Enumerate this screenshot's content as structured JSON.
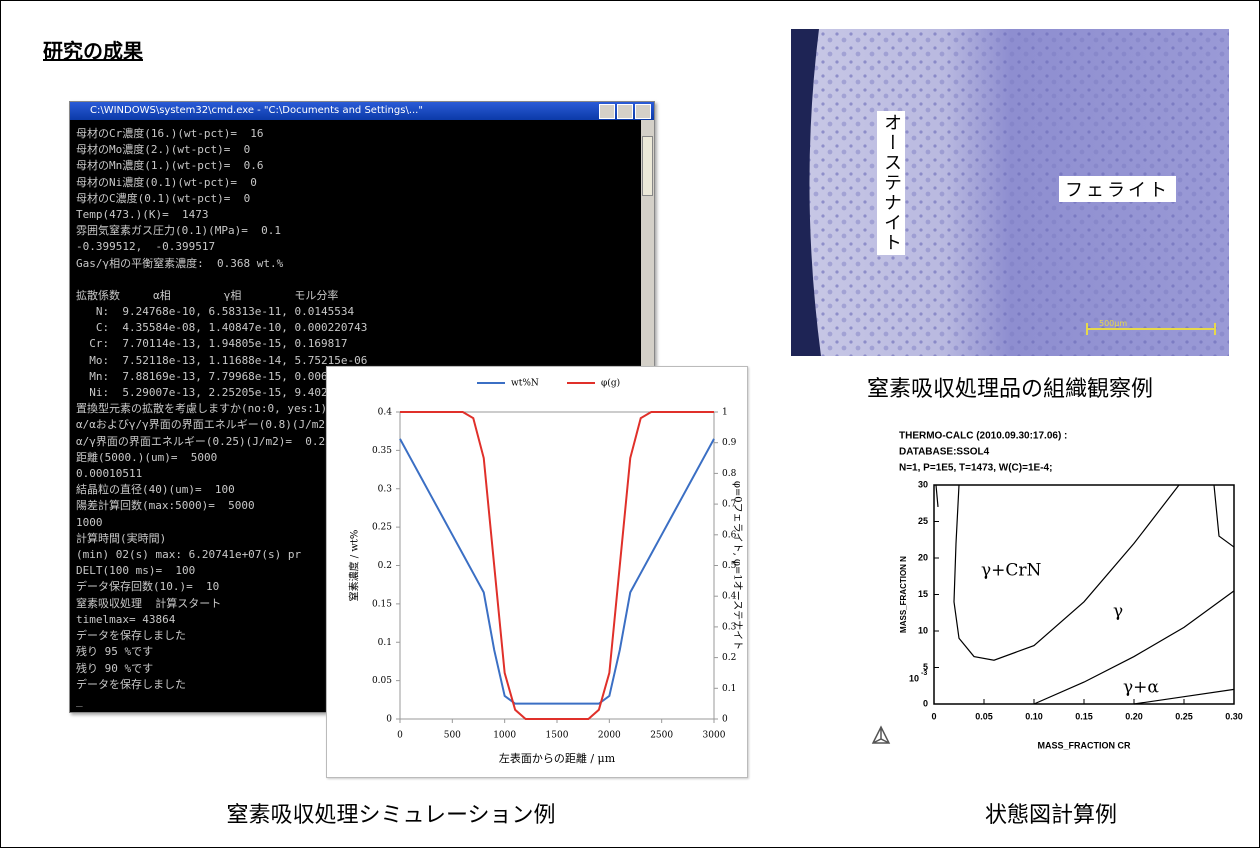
{
  "header": {
    "title": "研究の成果"
  },
  "console": {
    "title": "C:\\WINDOWS\\system32\\cmd.exe - \"C:\\Documents and Settings\\...\"",
    "lines": [
      "母材のCr濃度(16.)(wt-pct)=  16",
      "母材のMo濃度(2.)(wt-pct)=  0",
      "母材のMn濃度(1.)(wt-pct)=  0.6",
      "母材のNi濃度(0.1)(wt-pct)=  0",
      "母材のC濃度(0.1)(wt-pct)=  0",
      "Temp(473.)(K)=  1473",
      "雰囲気窒素ガス圧力(0.1)(MPa)=  0.1",
      "-0.399512,  -0.399517",
      "Gas/γ相の平衡窒素濃度:  0.368 wt.%",
      "拡散係数     α相        γ相        モル分率",
      "   N:  9.24768e-10, 6.58313e-11, 0.0145534",
      "   C:  4.35584e-08, 1.40847e-10, 0.000220743",
      "  Cr:  7.70114e-13, 1.94805e-15, 0.169817",
      "  Mo:  7.52118e-13, 1.11688e-14, 5.75215e-06",
      "  Mn:  7.88169e-13, 7.79968e-15, 0.0060271",
      "  Ni:  5.29007e-13, 2.25205e-15, 9.40209e-05",
      "置換型元素の拡散を考慮しますか(no:0, yes:1)=  0",
      "α/αおよびγ/γ界面の界面エネルギー(0.8)(J/m2)=  0.8",
      "α/γ界面の界面エネルギー(0.25)(J/m2)=  0.25",
      "距離(5000.)(um)=  5000",
      "0.00010511",
      "結晶粒の直径(40)(um)=  100",
      "陽差計算回数(max:5000)=  5000",
      "1000",
      "計算時間(実時間)",
      "(min) 02(s) max: 6.20741e+07(s) pr",
      "DELT(100 ms)=  100",
      "データ保存回数(10.)=  10",
      "窒素吸収処理  計算スタート",
      "timelmax= 43864",
      "データを保存しました",
      "残り 95 %です",
      "残り 90 %です",
      "データを保存しました",
      "_"
    ]
  },
  "micrograph": {
    "austenite": "オーステナイト",
    "ferrite": "フェライト",
    "scale_bar": "500μm",
    "caption": "窒素吸収処理品の組織観察例"
  },
  "captions": {
    "simulation": "窒素吸収処理シミュレーション例",
    "phase_diagram": "状態図計算例"
  },
  "chart_data": [
    {
      "type": "line",
      "x_label": "左表面からの距離 / μm",
      "y_label": "窒素濃度 / wt%",
      "y2_label": "φ=0フェライト, φ=1オーステナイト",
      "x": [
        0,
        100,
        200,
        300,
        400,
        500,
        600,
        700,
        800,
        900,
        1000,
        1100,
        1200,
        1300,
        1400,
        1500,
        1600,
        1700,
        1800,
        1900,
        2000,
        2100,
        2200,
        2300,
        2400,
        2500,
        2600,
        2700,
        2800,
        2900,
        3000
      ],
      "series": [
        {
          "name": "wt%N",
          "color": "#3b6fc4",
          "values": [
            0.365,
            0.34,
            0.315,
            0.29,
            0.265,
            0.24,
            0.215,
            0.19,
            0.165,
            0.09,
            0.03,
            0.02,
            0.02,
            0.02,
            0.02,
            0.02,
            0.02,
            0.02,
            0.02,
            0.02,
            0.03,
            0.09,
            0.165,
            0.19,
            0.215,
            0.24,
            0.265,
            0.29,
            0.315,
            0.34,
            0.365
          ]
        },
        {
          "name": "φ(g)",
          "color": "#e0302a",
          "axis": "y2",
          "values": [
            1,
            1,
            1,
            1,
            1,
            1,
            1,
            0.98,
            0.85,
            0.5,
            0.15,
            0.03,
            0,
            0,
            0,
            0,
            0,
            0,
            0,
            0.03,
            0.15,
            0.5,
            0.85,
            0.98,
            1,
            1,
            1,
            1,
            1,
            1,
            1
          ]
        }
      ],
      "xlim": [
        0,
        3000
      ],
      "ylim": [
        0,
        0.4
      ],
      "y2lim": [
        0,
        1
      ],
      "xticks": [
        0,
        500,
        1000,
        1500,
        2000,
        2500,
        3000
      ],
      "yticks": [
        0,
        0.05,
        0.1,
        0.15,
        0.2,
        0.25,
        0.3,
        0.35,
        0.4
      ],
      "y2ticks": [
        0,
        0.1,
        0.2,
        0.3,
        0.4,
        0.5,
        0.6,
        0.7,
        0.8,
        0.9,
        1
      ]
    },
    {
      "type": "line",
      "header": [
        "THERMO-CALC (2010.09.30:17.06) :",
        "DATABASE:SSOL4",
        "N=1, P=1E5, T=1473, W(C)=1E-4;"
      ],
      "x_label": "MASS_FRACTION CR",
      "y_label": "MASS_FRACTION N",
      "y_multiplier": {
        "base": "10",
        "exponent": "-3"
      },
      "regions": [
        "γ+CrN",
        "γ",
        "γ+α"
      ],
      "curves": [
        {
          "color": "#000000",
          "x": [
            0.025,
            0.022,
            0.02,
            0.025,
            0.04,
            0.06,
            0.1,
            0.15,
            0.2,
            0.245
          ],
          "y": [
            30,
            22,
            14,
            9,
            6.5,
            6,
            8,
            14,
            22,
            30
          ]
        },
        {
          "color": "#000000",
          "x": [
            0.002,
            0.004
          ],
          "y": [
            30,
            27
          ]
        },
        {
          "color": "#000000",
          "x": [
            0.28,
            0.285,
            0.3
          ],
          "y": [
            30,
            23,
            21.5
          ]
        },
        {
          "color": "#000000",
          "x": [
            0.1,
            0.15,
            0.2,
            0.25,
            0.3
          ],
          "y": [
            0,
            3,
            6.5,
            10.5,
            15.5
          ]
        },
        {
          "color": "#000000",
          "x": [
            0.2,
            0.25,
            0.3
          ],
          "y": [
            0,
            1,
            2
          ]
        }
      ],
      "xlim": [
        0,
        0.3
      ],
      "ylim": [
        0,
        30
      ],
      "xticks": [
        0,
        0.05,
        {
          "value": 0.1,
          "label": "0.10"
        },
        0.15,
        {
          "value": 0.2,
          "label": "0.20"
        },
        0.25,
        {
          "value": 0.3,
          "label": "0.30"
        }
      ],
      "yticks": [
        0,
        5,
        10,
        15,
        20,
        25,
        30
      ]
    }
  ]
}
